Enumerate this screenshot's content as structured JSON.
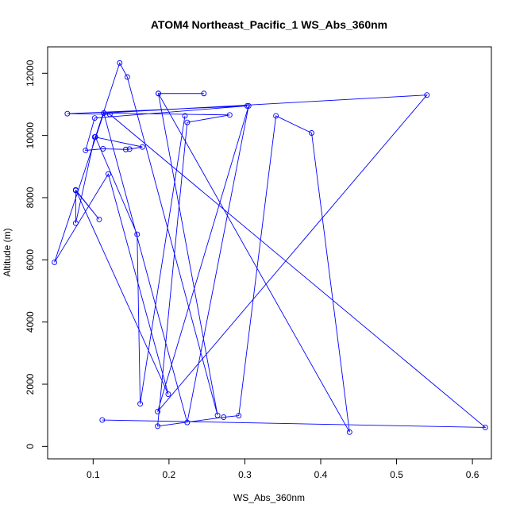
{
  "chart_data": {
    "type": "line",
    "title": "ATOM4 Northeast_Pacific_1 WS_Abs_360nm",
    "xlabel": "WS_Abs_360nm",
    "ylabel": "Altitude (m)",
    "xlim": [
      0.04,
      0.625
    ],
    "ylim": [
      -400,
      12850
    ],
    "xticks": [
      0.1,
      0.2,
      0.3,
      0.4,
      0.5,
      0.6
    ],
    "xtick_labels": [
      "0.1",
      "0.2",
      "0.3",
      "0.4",
      "0.5",
      "0.6"
    ],
    "yticks": [
      0,
      2000,
      4000,
      6000,
      8000,
      10000,
      12000
    ],
    "ytick_labels": [
      "0",
      "2000",
      "4000",
      "6000",
      "8000",
      "10000",
      "12000"
    ],
    "grid": false,
    "legend": "none",
    "markers": "open-circle",
    "series": [
      {
        "color": "#0000ff",
        "points": [
          [
            0.112,
            850
          ],
          [
            0.617,
            610
          ],
          [
            0.122,
            10680
          ],
          [
            0.066,
            10700
          ],
          [
            0.303,
            10950
          ],
          [
            0.102,
            10560
          ],
          [
            0.09,
            9520
          ],
          [
            0.113,
            9570
          ],
          [
            0.143,
            9550
          ],
          [
            0.148,
            9560
          ],
          [
            0.165,
            9630
          ],
          [
            0.102,
            9950
          ],
          [
            0.077,
            7180
          ],
          [
            0.077,
            8230
          ],
          [
            0.108,
            7300
          ],
          [
            0.077,
            8250
          ],
          [
            0.199,
            1680
          ],
          [
            0.12,
            8760
          ],
          [
            0.049,
            5920
          ],
          [
            0.114,
            10720
          ],
          [
            0.54,
            11300
          ],
          [
            0.185,
            1120
          ],
          [
            0.305,
            10950
          ],
          [
            0.224,
            770
          ],
          [
            0.114,
            10720
          ],
          [
            0.28,
            10660
          ],
          [
            0.224,
            10420
          ],
          [
            0.185,
            650
          ],
          [
            0.272,
            940
          ],
          [
            0.292,
            990
          ],
          [
            0.341,
            10630
          ],
          [
            0.388,
            10080
          ],
          [
            0.438,
            460
          ],
          [
            0.186,
            11350
          ],
          [
            0.246,
            11350
          ],
          [
            0.186,
            11350
          ],
          [
            0.264,
            1000
          ],
          [
            0.145,
            11880
          ],
          [
            0.135,
            12330
          ],
          [
            0.103,
            9950
          ],
          [
            0.158,
            6820
          ],
          [
            0.162,
            1370
          ],
          [
            0.221,
            10630
          ]
        ]
      }
    ]
  }
}
